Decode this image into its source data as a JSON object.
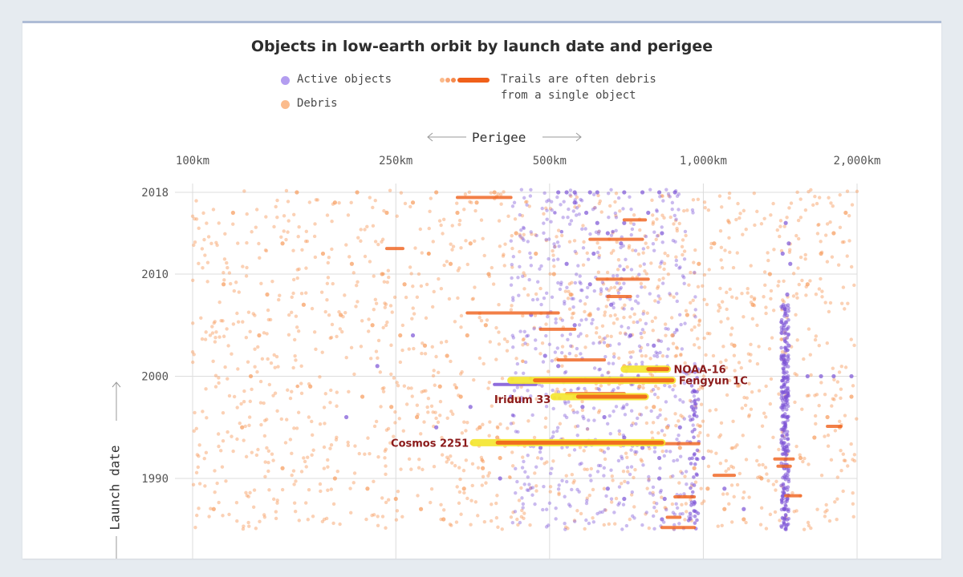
{
  "title": "Objects in low-earth orbit by launch date and perigee",
  "legend": {
    "active": "Active objects",
    "debris": "Debris",
    "trail_line1": "Trails are often debris",
    "trail_line2": "from a single object"
  },
  "colors": {
    "active": "#7b52d6",
    "debris": "#f79a5a",
    "trail": "#f0601a",
    "highlight": "#f5e62c",
    "label": "#8b1a1a",
    "grid": "#dcdcdc"
  },
  "chart_data": {
    "type": "scatter",
    "title": "Objects in low-earth orbit by launch date and perigee",
    "xlabel": "Perigee",
    "ylabel": "Launch date",
    "x_scale": "log",
    "x_unit": "km",
    "xlim": [
      100,
      2000
    ],
    "ylim": [
      1985,
      2020
    ],
    "x_ticks": [
      {
        "value": 100,
        "label": "100km"
      },
      {
        "value": 250,
        "label": "250km"
      },
      {
        "value": 500,
        "label": "500km"
      },
      {
        "value": 1000,
        "label": "1,000km"
      },
      {
        "value": 2000,
        "label": "2,000km"
      }
    ],
    "y_ticks": [
      {
        "value": 2018,
        "label": "2018"
      },
      {
        "value": 2010,
        "label": "2010"
      },
      {
        "value": 2000,
        "label": "2000"
      },
      {
        "value": 1990,
        "label": "1990"
      }
    ],
    "grid": true,
    "legend_position": "top-left",
    "series": [
      {
        "name": "Active objects",
        "points": [
          [
            520,
            2018
          ],
          [
            540,
            2018
          ],
          [
            560,
            2018
          ],
          [
            600,
            2018
          ],
          [
            620,
            2018
          ],
          [
            700,
            2018
          ],
          [
            760,
            2018
          ],
          [
            820,
            2018
          ],
          [
            880,
            2018
          ],
          [
            560,
            2017
          ],
          [
            590,
            2016
          ],
          [
            620,
            2015
          ],
          [
            650,
            2014
          ],
          [
            700,
            2015
          ],
          [
            780,
            2016
          ],
          [
            830,
            2014
          ],
          [
            1450,
            2015
          ],
          [
            1470,
            2013
          ],
          [
            1430,
            2012
          ],
          [
            1480,
            2011
          ],
          [
            1460,
            2008
          ],
          [
            1440,
            2005
          ],
          [
            1470,
            2003
          ],
          [
            540,
            2011
          ],
          [
            600,
            2009
          ],
          [
            660,
            2007
          ],
          [
            720,
            2004
          ],
          [
            800,
            2003
          ],
          [
            460,
            2006
          ],
          [
            490,
            2002
          ],
          [
            520,
            2001
          ],
          [
            580,
            1997
          ],
          [
            640,
            1996
          ],
          [
            700,
            1994
          ],
          [
            760,
            1993
          ],
          [
            820,
            1990
          ],
          [
            840,
            1988
          ],
          [
            830,
            1986
          ],
          [
            820,
            1992
          ],
          [
            1440,
            1999
          ],
          [
            1440,
            1997
          ],
          [
            1440,
            1995
          ],
          [
            1440,
            1993
          ],
          [
            1440,
            1991
          ],
          [
            1440,
            1989
          ],
          [
            1440,
            1987
          ],
          [
            1440,
            1985.5
          ],
          [
            1460,
            1996
          ],
          [
            1460,
            1988
          ],
          [
            1600,
            2000
          ],
          [
            1700,
            2000
          ],
          [
            1800,
            2000
          ],
          [
            1950,
            2000
          ],
          [
            420,
            1998
          ],
          [
            350,
            1997
          ],
          [
            300,
            1995
          ],
          [
            270,
            2004
          ],
          [
            230,
            2001
          ],
          [
            200,
            1996
          ],
          [
            900,
            1995
          ],
          [
            950,
            1997
          ],
          [
            1000,
            1992
          ],
          [
            1100,
            1989
          ],
          [
            1200,
            1987
          ],
          [
            650,
            1989
          ],
          [
            700,
            1988
          ],
          [
            480,
            1993
          ],
          [
            400,
            1990
          ],
          [
            560,
            2005
          ],
          [
            610,
            2012
          ],
          [
            690,
            2013
          ]
        ]
      },
      {
        "name": "Debris",
        "points": [
          [
            160,
            2018
          ],
          [
            190,
            2017
          ],
          [
            210,
            2018
          ],
          [
            240,
            2016
          ],
          [
            270,
            2017
          ],
          [
            300,
            2018
          ],
          [
            330,
            2016
          ],
          [
            360,
            2017
          ],
          [
            390,
            2018
          ],
          [
            150,
            2013
          ],
          [
            180,
            2012
          ],
          [
            205,
            2011
          ],
          [
            235,
            2010
          ],
          [
            260,
            2009
          ],
          [
            290,
            2012
          ],
          [
            320,
            2011
          ],
          [
            350,
            2013
          ],
          [
            380,
            2010
          ],
          [
            140,
            2008
          ],
          [
            165,
            2007
          ],
          [
            195,
            2006
          ],
          [
            225,
            2005
          ],
          [
            255,
            2004
          ],
          [
            285,
            2003
          ],
          [
            315,
            2002
          ],
          [
            345,
            2004
          ],
          [
            375,
            2005
          ],
          [
            130,
            2000
          ],
          [
            170,
            1999
          ],
          [
            215,
            1998
          ],
          [
            245,
            1997
          ],
          [
            275,
            1996
          ],
          [
            305,
            1999
          ],
          [
            335,
            1998
          ],
          [
            365,
            1995
          ],
          [
            395,
            1994
          ],
          [
            150,
            1991
          ],
          [
            190,
            1990
          ],
          [
            220,
            1989
          ],
          [
            250,
            1988
          ],
          [
            280,
            1987
          ],
          [
            310,
            1986
          ],
          [
            340,
            1989
          ],
          [
            370,
            1991
          ],
          [
            400,
            1992
          ],
          [
            430,
            2014
          ],
          [
            470,
            2012
          ],
          [
            510,
            2010
          ],
          [
            550,
            2008
          ],
          [
            600,
            2006
          ],
          [
            650,
            2003
          ],
          [
            700,
            2001
          ],
          [
            750,
            1999
          ],
          [
            800,
            1997
          ],
          [
            850,
            1995
          ],
          [
            900,
            1993
          ],
          [
            960,
            1991
          ],
          [
            1020,
            1989
          ],
          [
            1100,
            1987
          ],
          [
            1200,
            1986
          ],
          [
            1300,
            1990
          ],
          [
            1550,
            1992
          ],
          [
            1650,
            1994
          ],
          [
            1750,
            1996
          ],
          [
            1850,
            1995
          ],
          [
            1950,
            1998
          ],
          [
            1150,
            2003
          ],
          [
            1250,
            2007
          ],
          [
            1350,
            2010
          ],
          [
            1600,
            2009
          ],
          [
            1700,
            2012
          ],
          [
            1800,
            2014
          ],
          [
            1900,
            2016
          ],
          [
            1050,
            2013
          ],
          [
            980,
            2011
          ],
          [
            930,
            2006
          ],
          [
            870,
            2004
          ],
          [
            120,
            2016
          ],
          [
            115,
            2009
          ],
          [
            135,
            2004
          ],
          [
            125,
            1995
          ],
          [
            110,
            1987
          ]
        ]
      },
      {
        "name": "Trails",
        "trails": [
          [
            240,
            258,
            2012.5
          ],
          [
            330,
            420,
            2017.5
          ],
          [
            345,
            520,
            2006.2
          ],
          [
            480,
            560,
            2004.6
          ],
          [
            520,
            640,
            2001.6
          ],
          [
            600,
            760,
            2013.4
          ],
          [
            620,
            780,
            2009.5
          ],
          [
            650,
            720,
            2007.8
          ],
          [
            700,
            770,
            2015.3
          ],
          [
            540,
            700,
            1998.3
          ],
          [
            760,
            980,
            1993.4
          ],
          [
            880,
            960,
            1988.2
          ],
          [
            850,
            900,
            1986.2
          ],
          [
            830,
            960,
            1985.2
          ],
          [
            1050,
            1150,
            1990.3
          ],
          [
            1380,
            1500,
            1991.9
          ],
          [
            1400,
            1480,
            1991.2
          ],
          [
            1450,
            1550,
            1988.3
          ],
          [
            1750,
            1860,
            1995.1
          ]
        ]
      }
    ],
    "annotations": [
      {
        "label": "NOAA-16",
        "x_from": 700,
        "x_to": 850,
        "y": 2000.7
      },
      {
        "label": "Fengyun 1C",
        "x_from": 420,
        "x_to": 870,
        "y": 1999.6
      },
      {
        "label": "Iridum 33",
        "x_from": 510,
        "x_to": 770,
        "y": 1998.0
      },
      {
        "label": "Cosmos 2251",
        "x_from": 355,
        "x_to": 830,
        "y": 1993.5
      }
    ],
    "active_trail": {
      "x_from": 390,
      "x_to": 470,
      "y": 1999.2
    }
  }
}
